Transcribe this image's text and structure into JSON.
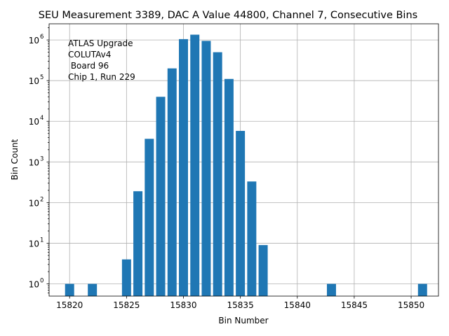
{
  "chart_data": {
    "type": "bar",
    "title": "SEU Measurement 3389, DAC A Value 44800, Channel 7, Consecutive Bins",
    "xlabel": "Bin Number",
    "ylabel": "Bin Count",
    "yscale": "log",
    "xlim": [
      15818.2,
      15852.4
    ],
    "ylim": [
      0.5,
      2500000
    ],
    "grid": true,
    "bar_color": "#1f77b4",
    "xticks": [
      15820,
      15825,
      15830,
      15835,
      15840,
      15845,
      15850
    ],
    "yticks": [
      {
        "base": "10",
        "exp": "0",
        "value": 1
      },
      {
        "base": "10",
        "exp": "1",
        "value": 10
      },
      {
        "base": "10",
        "exp": "2",
        "value": 100
      },
      {
        "base": "10",
        "exp": "3",
        "value": 1000
      },
      {
        "base": "10",
        "exp": "4",
        "value": 10000
      },
      {
        "base": "10",
        "exp": "5",
        "value": 100000
      },
      {
        "base": "10",
        "exp": "6",
        "value": 1000000
      }
    ],
    "annotation": [
      "ATLAS Upgrade",
      "COLUTAv4",
      " Board 96",
      "Chip 1, Run 229"
    ],
    "bars": [
      {
        "x": 15820,
        "value": 1
      },
      {
        "x": 15822,
        "value": 1
      },
      {
        "x": 15825,
        "value": 4
      },
      {
        "x": 15826,
        "value": 190
      },
      {
        "x": 15827,
        "value": 3700
      },
      {
        "x": 15828,
        "value": 40000
      },
      {
        "x": 15829,
        "value": 200000
      },
      {
        "x": 15830,
        "value": 1050000
      },
      {
        "x": 15831,
        "value": 1350000
      },
      {
        "x": 15832,
        "value": 950000
      },
      {
        "x": 15833,
        "value": 500000
      },
      {
        "x": 15834,
        "value": 110000
      },
      {
        "x": 15835,
        "value": 5800
      },
      {
        "x": 15836,
        "value": 330
      },
      {
        "x": 15837,
        "value": 9
      },
      {
        "x": 15843,
        "value": 1
      },
      {
        "x": 15851,
        "value": 1
      }
    ]
  }
}
